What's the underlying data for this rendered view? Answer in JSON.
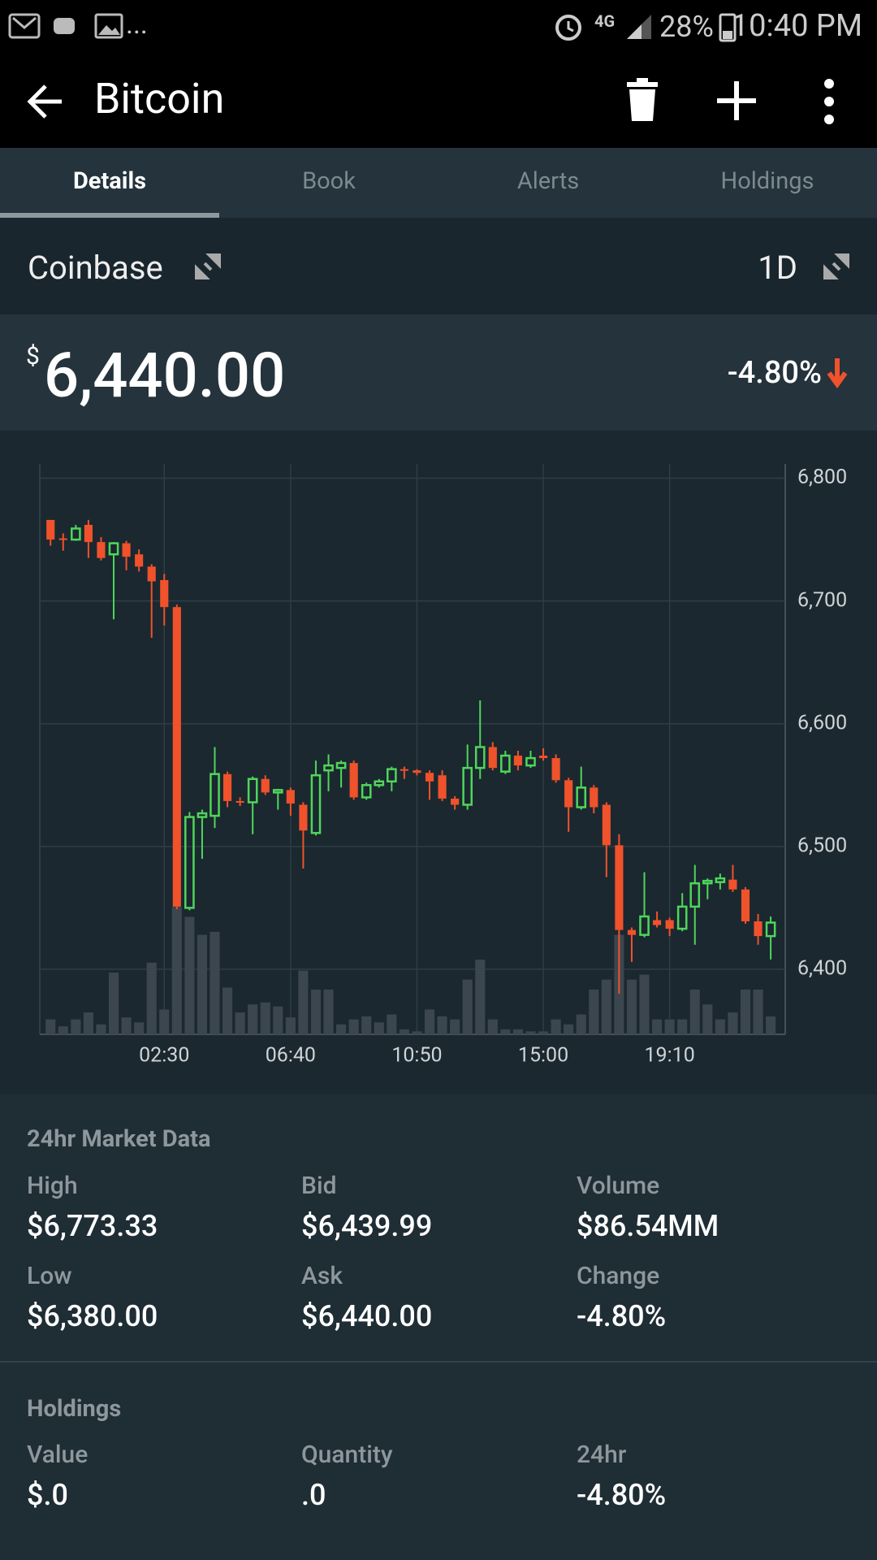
{
  "status_bar": {
    "notifications_more": "...",
    "network": "4G",
    "battery": "28%",
    "time": "10:40 PM"
  },
  "app_bar": {
    "title": "Bitcoin"
  },
  "tabs": {
    "items": [
      "Details",
      "Book",
      "Alerts",
      "Holdings"
    ],
    "active": 0
  },
  "exchange_row": {
    "exchange": "Coinbase",
    "interval": "1D"
  },
  "price": {
    "currency": "$",
    "amount": "6,440.00",
    "change": "-4.80%"
  },
  "chart_data": {
    "type": "candlestick",
    "categories": [
      null,
      null,
      null,
      null,
      null,
      null,
      null,
      null,
      null,
      "02:30",
      null,
      null,
      null,
      null,
      null,
      null,
      null,
      null,
      null,
      "06:40",
      null,
      null,
      null,
      null,
      null,
      null,
      null,
      null,
      null,
      "10:50",
      null,
      null,
      null,
      null,
      null,
      null,
      null,
      null,
      null,
      "15:00",
      null,
      null,
      null,
      null,
      null,
      null,
      null,
      null,
      null,
      "19:10",
      null,
      null,
      null,
      null,
      null,
      null,
      null,
      null
    ],
    "open": [
      6766,
      6751,
      6750,
      6762,
      6748,
      6738,
      6747,
      6738,
      6728,
      6717,
      6695,
      6450,
      6524,
      6525,
      6559,
      6537,
      6536,
      6555,
      6544,
      6546,
      6534,
      6511,
      6562,
      6564,
      6568,
      6540,
      6550,
      6553,
      6563,
      6562,
      6560,
      6558,
      6539,
      6534,
      6564,
      6581,
      6561,
      6574,
      6566,
      6574,
      6572,
      6554,
      6532,
      6548,
      6534,
      6501,
      6432,
      6428,
      6440,
      6440,
      6433,
      6451,
      6470,
      6471,
      6473,
      6465,
      6439,
      6427
    ],
    "high": [
      6766,
      6755,
      6762,
      6766,
      6752,
      6748,
      6749,
      6742,
      6730,
      6722,
      6697,
      6528,
      6530,
      6581,
      6561,
      6540,
      6557,
      6558,
      6547,
      6548,
      6536,
      6570,
      6575,
      6570,
      6570,
      6552,
      6555,
      6565,
      6565,
      6563,
      6562,
      6562,
      6541,
      6583,
      6619,
      6585,
      6578,
      6578,
      6578,
      6580,
      6575,
      6556,
      6565,
      6550,
      6536,
      6510,
      6434,
      6479,
      6447,
      6442,
      6462,
      6485,
      6474,
      6478,
      6485,
      6467,
      6445,
      6443
    ],
    "low": [
      6745,
      6741,
      6749,
      6735,
      6733,
      6685,
      6725,
      6724,
      6670,
      6680,
      6449,
      6448,
      6490,
      6515,
      6532,
      6533,
      6510,
      6542,
      6530,
      6525,
      6482,
      6509,
      6545,
      6548,
      6538,
      6538,
      6548,
      6545,
      6555,
      6558,
      6538,
      6537,
      6530,
      6530,
      6555,
      6562,
      6559,
      6562,
      6564,
      6570,
      6552,
      6512,
      6530,
      6527,
      6475,
      6380,
      6406,
      6426,
      6434,
      6427,
      6431,
      6420,
      6457,
      6465,
      6463,
      6437,
      6420,
      6408
    ],
    "close": [
      6750,
      6750,
      6759,
      6748,
      6735,
      6747,
      6736,
      6728,
      6716,
      6695,
      6451,
      6524,
      6527,
      6559,
      6537,
      6536,
      6555,
      6544,
      6546,
      6535,
      6513,
      6558,
      6566,
      6568,
      6540,
      6550,
      6553,
      6563,
      6562,
      6560,
      6553,
      6539,
      6534,
      6564,
      6581,
      6564,
      6574,
      6566,
      6572,
      6572,
      6554,
      6532,
      6548,
      6532,
      6501,
      6432,
      6428,
      6443,
      6436,
      6433,
      6451,
      6470,
      6472,
      6474,
      6465,
      6439,
      6427,
      6438
    ],
    "volume": {
      "axis": "y2",
      "color": "#3b464e",
      "values": [
        15,
        8,
        15,
        22,
        10,
        62,
        17,
        12,
        72,
        25,
        128,
        118,
        100,
        103,
        47,
        22,
        30,
        32,
        28,
        17,
        64,
        45,
        45,
        10,
        15,
        18,
        12,
        20,
        5,
        3,
        25,
        18,
        15,
        55,
        75,
        15,
        5,
        5,
        3,
        3,
        15,
        10,
        20,
        45,
        55,
        100,
        55,
        60,
        15,
        15,
        15,
        45,
        30,
        15,
        22,
        45,
        45,
        18
      ]
    },
    "up_color": "#4fd65a",
    "down_color": "#f0522b",
    "ylim": [
      6347,
      6805
    ],
    "yticks": [
      {
        "value": 6400,
        "label": "6,400"
      },
      {
        "value": 6500,
        "label": "6,500"
      },
      {
        "value": 6600,
        "label": "6,600"
      },
      {
        "value": 6700,
        "label": "6,700"
      },
      {
        "value": 6800,
        "label": "6,800"
      }
    ],
    "y2lim": [
      0,
      565
    ],
    "grid": true
  },
  "market_data": {
    "title": "24hr Market Data",
    "items": [
      {
        "label": "High",
        "value": "$6,773.33"
      },
      {
        "label": "Bid",
        "value": "$6,439.99"
      },
      {
        "label": "Volume",
        "value": "$86.54MM"
      },
      {
        "label": "Low",
        "value": "$6,380.00"
      },
      {
        "label": "Ask",
        "value": "$6,440.00"
      },
      {
        "label": "Change",
        "value": "-4.80%"
      }
    ]
  },
  "holdings": {
    "title": "Holdings",
    "items": [
      {
        "label": "Value",
        "value": "$.0"
      },
      {
        "label": "Quantity",
        "value": ".0"
      },
      {
        "label": "24hr",
        "value": "-4.80%"
      }
    ]
  }
}
